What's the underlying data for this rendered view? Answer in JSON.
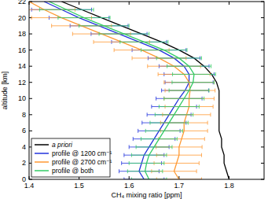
{
  "chart_data": {
    "type": "line",
    "x_label": "CH₄ mixing ratio [ppm]",
    "y_label": "altitude [km]",
    "y": [
      0,
      1,
      2,
      3,
      4,
      5,
      6,
      7,
      8,
      9,
      10,
      11,
      12,
      13,
      14,
      15,
      16,
      17,
      18,
      19,
      20,
      21,
      22
    ],
    "series": [
      {
        "name": "a priori",
        "color": "#000000",
        "values": [
          1.8,
          1.795,
          1.79,
          1.79,
          1.785,
          1.785,
          1.78,
          1.78,
          1.78,
          1.78,
          1.78,
          1.78,
          1.775,
          1.765,
          1.75,
          1.73,
          1.7,
          1.665,
          1.625,
          1.585,
          1.545,
          1.505,
          1.465
        ]
      },
      {
        "name": "profile @ 1200 cm⁻¹",
        "color": "#2233dd",
        "values": [
          1.63,
          1.62,
          1.625,
          1.63,
          1.64,
          1.65,
          1.66,
          1.67,
          1.68,
          1.69,
          1.7,
          1.712,
          1.72,
          1.72,
          1.71,
          1.69,
          1.66,
          1.62,
          1.58,
          1.54,
          1.5,
          1.465,
          1.43
        ],
        "errors": [
          0.04,
          0.04,
          0.04,
          0.04,
          0.04,
          0.042,
          0.042,
          0.044,
          0.044,
          0.045,
          0.046,
          0.047,
          0.048,
          0.05,
          0.05,
          0.052,
          0.054,
          0.055,
          0.056,
          0.058,
          0.06,
          0.06,
          null
        ]
      },
      {
        "name": "profile @ 2700 cm⁻¹",
        "color": "#ff9933",
        "values": [
          1.7,
          1.69,
          1.695,
          1.7,
          1.7,
          1.705,
          1.71,
          1.71,
          1.715,
          1.72,
          1.72,
          1.722,
          1.72,
          1.71,
          1.69,
          1.66,
          1.625,
          1.585,
          1.545,
          1.505,
          1.465,
          1.43,
          1.4
        ],
        "errors": [
          0.045,
          0.045,
          0.045,
          0.045,
          0.046,
          0.046,
          0.047,
          0.047,
          0.048,
          0.048,
          0.05,
          0.05,
          0.05,
          0.052,
          0.053,
          0.054,
          0.055,
          0.056,
          0.058,
          0.06,
          0.06,
          0.062,
          null
        ]
      },
      {
        "name": "profile @ both",
        "color": "#33cc66",
        "values": [
          1.64,
          1.632,
          1.635,
          1.64,
          1.65,
          1.66,
          1.67,
          1.68,
          1.69,
          1.7,
          1.71,
          1.72,
          1.728,
          1.73,
          1.72,
          1.7,
          1.67,
          1.63,
          1.59,
          1.55,
          1.51,
          1.475,
          1.44
        ],
        "errors": [
          0.035,
          0.035,
          0.035,
          0.035,
          0.036,
          0.036,
          0.037,
          0.038,
          0.038,
          0.04,
          0.04,
          0.04,
          0.042,
          0.043,
          0.044,
          0.045,
          0.046,
          0.048,
          0.05,
          0.05,
          0.052,
          0.054,
          null
        ]
      }
    ],
    "xlim": [
      1.4,
      1.87
    ],
    "xticks": [
      1.4,
      1.5,
      1.6,
      1.7,
      1.8
    ],
    "ylim": [
      0,
      22
    ],
    "yticks": [
      0,
      2,
      4,
      6,
      8,
      10,
      12,
      14,
      16,
      18,
      20,
      22
    ],
    "legend": "lower left",
    "grid": false
  }
}
